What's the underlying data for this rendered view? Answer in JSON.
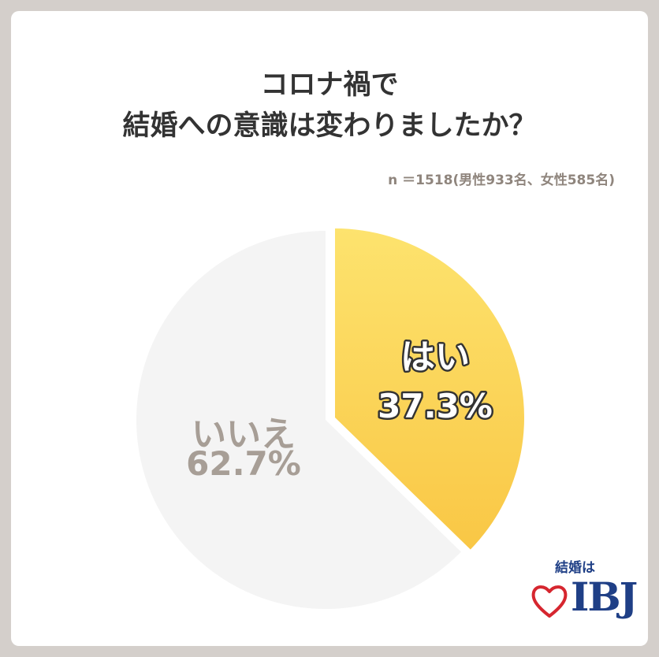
{
  "title_lines": [
    "コロナ禍で",
    "結婚への意識は変わりましたか？"
  ],
  "sample_note": "n ＝1518(男性933名、女性585名)",
  "chart_data": {
    "type": "pie",
    "title": "コロナ禍で 結婚への意識は変わりましたか？",
    "slices": [
      {
        "label": "はい",
        "value": 37.3,
        "value_label": "37.3%",
        "color": "#fbd04f"
      },
      {
        "label": "いいえ",
        "value": 62.7,
        "value_label": "62.7%",
        "color": "#f4f4f4"
      }
    ],
    "start": "12 o'clock",
    "direction": "clockwise",
    "exploded_slice": "はい"
  },
  "logo": {
    "caption": "結婚は",
    "mark": "IBJ",
    "accent_color": "#d6262f",
    "brand_color": "#1f3f86"
  }
}
